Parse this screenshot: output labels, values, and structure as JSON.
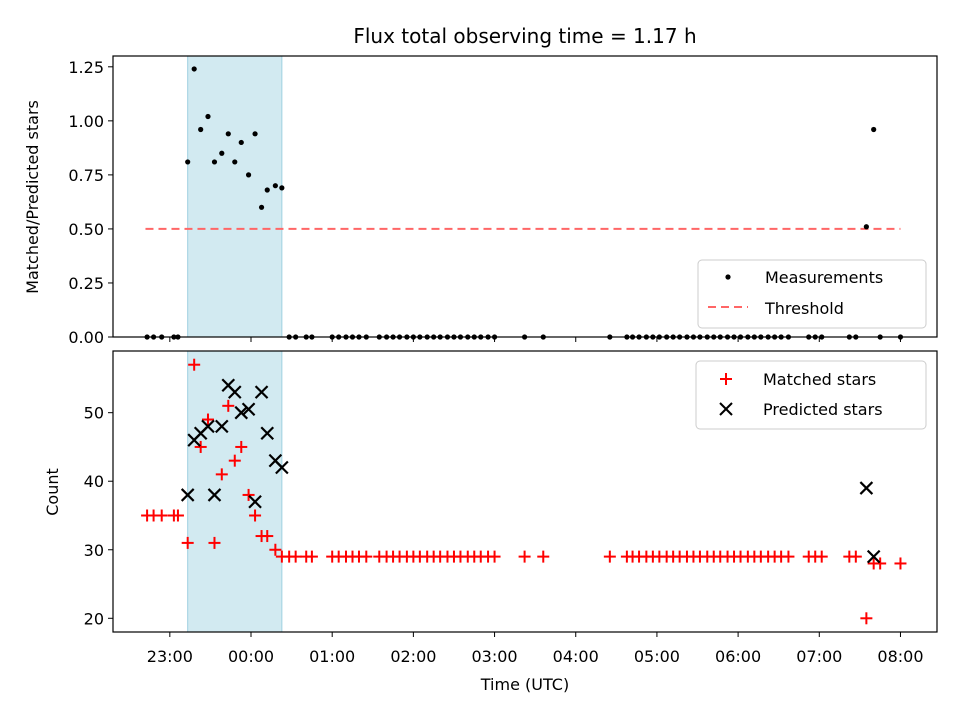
{
  "chart_data": [
    {
      "type": "scatter",
      "title": "Flux total observing time = 1.17 h",
      "xlabel": "",
      "ylabel": "Matched/Predicted stars",
      "ylim": [
        0,
        1.3
      ],
      "yticks": [
        "0.00",
        "0.25",
        "0.50",
        "0.75",
        "1.00",
        "1.25"
      ],
      "shaded_region": {
        "x_start": 23.22,
        "x_end": 24.38,
        "color": "#add8e6"
      },
      "legend": {
        "placement": "lower-right",
        "entries": [
          "Measurements",
          "Threshold"
        ]
      },
      "threshold": {
        "name": "Threshold",
        "y": 0.5,
        "x_start": 22.7,
        "x_end": 32.0,
        "color": "#ff0000"
      },
      "series": [
        {
          "name": "Measurements",
          "color": "#000000",
          "points": [
            [
              22.72,
              0
            ],
            [
              22.8,
              0
            ],
            [
              22.9,
              0
            ],
            [
              23.05,
              0
            ],
            [
              23.1,
              0
            ],
            [
              23.22,
              0.81
            ],
            [
              23.3,
              1.24
            ],
            [
              23.38,
              0.96
            ],
            [
              23.47,
              1.02
            ],
            [
              23.55,
              0.81
            ],
            [
              23.64,
              0.85
            ],
            [
              23.72,
              0.94
            ],
            [
              23.8,
              0.81
            ],
            [
              23.88,
              0.9
            ],
            [
              23.97,
              0.75
            ],
            [
              24.05,
              0.94
            ],
            [
              24.13,
              0.6
            ],
            [
              24.2,
              0.68
            ],
            [
              24.3,
              0.7
            ],
            [
              24.38,
              0.69
            ],
            [
              24.47,
              0
            ],
            [
              24.55,
              0
            ],
            [
              24.68,
              0
            ],
            [
              24.75,
              0
            ],
            [
              25.0,
              0
            ],
            [
              25.08,
              0
            ],
            [
              25.17,
              0
            ],
            [
              25.25,
              0
            ],
            [
              25.33,
              0
            ],
            [
              25.42,
              0
            ],
            [
              25.58,
              0
            ],
            [
              25.67,
              0
            ],
            [
              25.75,
              0
            ],
            [
              25.83,
              0
            ],
            [
              25.92,
              0
            ],
            [
              26.0,
              0
            ],
            [
              26.08,
              0
            ],
            [
              26.17,
              0
            ],
            [
              26.25,
              0
            ],
            [
              26.33,
              0
            ],
            [
              26.42,
              0
            ],
            [
              26.5,
              0
            ],
            [
              26.58,
              0
            ],
            [
              26.67,
              0
            ],
            [
              26.75,
              0
            ],
            [
              26.83,
              0
            ],
            [
              26.92,
              0
            ],
            [
              27.0,
              0
            ],
            [
              27.37,
              0
            ],
            [
              27.6,
              0
            ],
            [
              28.42,
              0
            ],
            [
              28.63,
              0
            ],
            [
              28.7,
              0
            ],
            [
              28.78,
              0
            ],
            [
              28.87,
              0
            ],
            [
              28.95,
              0
            ],
            [
              29.03,
              0
            ],
            [
              29.12,
              0
            ],
            [
              29.2,
              0
            ],
            [
              29.28,
              0
            ],
            [
              29.37,
              0
            ],
            [
              29.45,
              0
            ],
            [
              29.53,
              0
            ],
            [
              29.62,
              0
            ],
            [
              29.7,
              0
            ],
            [
              29.78,
              0
            ],
            [
              29.87,
              0
            ],
            [
              29.95,
              0
            ],
            [
              30.03,
              0
            ],
            [
              30.12,
              0
            ],
            [
              30.2,
              0
            ],
            [
              30.28,
              0
            ],
            [
              30.37,
              0
            ],
            [
              30.45,
              0
            ],
            [
              30.53,
              0
            ],
            [
              30.62,
              0
            ],
            [
              30.87,
              0
            ],
            [
              30.95,
              0
            ],
            [
              31.03,
              0
            ],
            [
              31.37,
              0
            ],
            [
              31.45,
              0
            ],
            [
              31.58,
              0.51
            ],
            [
              31.67,
              0.96
            ],
            [
              31.75,
              0
            ],
            [
              32.0,
              0
            ]
          ]
        }
      ]
    },
    {
      "type": "scatter",
      "title": "",
      "xlabel": "Time (UTC)",
      "ylabel": "Count",
      "ylim": [
        18,
        59
      ],
      "yticks": [
        "20",
        "30",
        "40",
        "50"
      ],
      "xticks": [
        "23:00",
        "00:00",
        "01:00",
        "02:00",
        "03:00",
        "04:00",
        "05:00",
        "06:00",
        "07:00",
        "08:00"
      ],
      "xlim_hours": [
        22.3,
        32.45
      ],
      "shaded_region": {
        "x_start": 23.22,
        "x_end": 24.38,
        "color": "#add8e6"
      },
      "legend": {
        "placement": "upper-right",
        "entries": [
          "Matched stars",
          "Predicted stars"
        ]
      },
      "series": [
        {
          "name": "Matched stars",
          "marker": "plus",
          "color": "#ff0000",
          "points": [
            [
              22.72,
              35
            ],
            [
              22.8,
              35
            ],
            [
              22.9,
              35
            ],
            [
              23.05,
              35
            ],
            [
              23.1,
              35
            ],
            [
              23.22,
              31
            ],
            [
              23.3,
              57
            ],
            [
              23.38,
              45
            ],
            [
              23.47,
              49
            ],
            [
              23.55,
              31
            ],
            [
              23.64,
              41
            ],
            [
              23.72,
              51
            ],
            [
              23.8,
              43
            ],
            [
              23.88,
              45
            ],
            [
              23.97,
              38
            ],
            [
              24.05,
              35
            ],
            [
              24.13,
              32
            ],
            [
              24.2,
              32
            ],
            [
              24.3,
              30
            ],
            [
              24.38,
              29
            ],
            [
              24.47,
              29
            ],
            [
              24.55,
              29
            ],
            [
              24.68,
              29
            ],
            [
              24.75,
              29
            ],
            [
              25.0,
              29
            ],
            [
              25.08,
              29
            ],
            [
              25.17,
              29
            ],
            [
              25.25,
              29
            ],
            [
              25.33,
              29
            ],
            [
              25.42,
              29
            ],
            [
              25.58,
              29
            ],
            [
              25.67,
              29
            ],
            [
              25.75,
              29
            ],
            [
              25.83,
              29
            ],
            [
              25.92,
              29
            ],
            [
              26.0,
              29
            ],
            [
              26.08,
              29
            ],
            [
              26.17,
              29
            ],
            [
              26.25,
              29
            ],
            [
              26.33,
              29
            ],
            [
              26.42,
              29
            ],
            [
              26.5,
              29
            ],
            [
              26.58,
              29
            ],
            [
              26.67,
              29
            ],
            [
              26.75,
              29
            ],
            [
              26.83,
              29
            ],
            [
              26.92,
              29
            ],
            [
              27.0,
              29
            ],
            [
              27.37,
              29
            ],
            [
              27.6,
              29
            ],
            [
              28.42,
              29
            ],
            [
              28.63,
              29
            ],
            [
              28.7,
              29
            ],
            [
              28.78,
              29
            ],
            [
              28.87,
              29
            ],
            [
              28.95,
              29
            ],
            [
              29.03,
              29
            ],
            [
              29.12,
              29
            ],
            [
              29.2,
              29
            ],
            [
              29.28,
              29
            ],
            [
              29.37,
              29
            ],
            [
              29.45,
              29
            ],
            [
              29.53,
              29
            ],
            [
              29.62,
              29
            ],
            [
              29.7,
              29
            ],
            [
              29.78,
              29
            ],
            [
              29.87,
              29
            ],
            [
              29.95,
              29
            ],
            [
              30.03,
              29
            ],
            [
              30.12,
              29
            ],
            [
              30.2,
              29
            ],
            [
              30.28,
              29
            ],
            [
              30.37,
              29
            ],
            [
              30.45,
              29
            ],
            [
              30.53,
              29
            ],
            [
              30.62,
              29
            ],
            [
              30.87,
              29
            ],
            [
              30.95,
              29
            ],
            [
              31.03,
              29
            ],
            [
              31.37,
              29
            ],
            [
              31.45,
              29
            ],
            [
              31.58,
              20
            ],
            [
              31.67,
              28
            ],
            [
              31.75,
              28
            ],
            [
              32.0,
              28
            ]
          ]
        },
        {
          "name": "Predicted stars",
          "marker": "x",
          "color": "#000000",
          "points": [
            [
              23.22,
              38
            ],
            [
              23.3,
              46
            ],
            [
              23.38,
              47
            ],
            [
              23.47,
              48
            ],
            [
              23.55,
              38
            ],
            [
              23.64,
              48
            ],
            [
              23.72,
              54
            ],
            [
              23.8,
              53
            ],
            [
              23.88,
              50
            ],
            [
              23.97,
              50.5
            ],
            [
              24.05,
              37
            ],
            [
              24.13,
              53
            ],
            [
              24.2,
              47
            ],
            [
              24.3,
              43
            ],
            [
              24.38,
              42
            ],
            [
              31.58,
              39
            ],
            [
              31.67,
              29
            ]
          ]
        }
      ]
    }
  ]
}
